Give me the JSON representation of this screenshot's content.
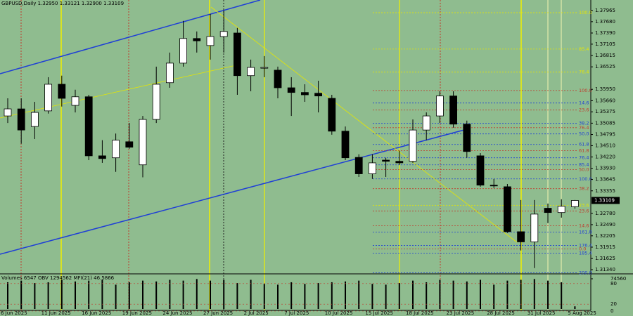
{
  "chart_data": {
    "type": "candlestick",
    "title": "GBPUSD,Daily  1.32950 1.33121 1.32900 1.33109",
    "categories": [
      "6 Jun 2025",
      null,
      null,
      "11 Jun 2025",
      null,
      null,
      "16 Jun 2025",
      null,
      null,
      "19 Jun 2025",
      null,
      null,
      "24 Jun 2025",
      null,
      null,
      "27 Jun 2025",
      null,
      null,
      "2 Jul 2025",
      null,
      null,
      "7 Jul 2025",
      null,
      null,
      "10 Jul 2025",
      null,
      null,
      "15 Jul 2025",
      null,
      null,
      "18 Jul 2025",
      null,
      null,
      "23 Jul 2025",
      null,
      null,
      "28 Jul 2025",
      null,
      null,
      "31 Jul 2025",
      null,
      null,
      "5 Aug 2025"
    ],
    "open": [
      1.3527,
      1.3545,
      1.35,
      1.354,
      1.3608,
      1.3554,
      1.3576,
      1.3425,
      1.342,
      1.3461,
      1.3402,
      1.3518,
      1.3612,
      1.3662,
      1.3725,
      1.3707,
      1.373,
      1.3739,
      1.363,
      1.3649,
      1.3644,
      1.3599,
      1.3587,
      1.3585,
      1.3572,
      1.3488,
      1.3421,
      1.3379,
      1.3414,
      1.3411,
      1.3411,
      1.3491,
      1.3527,
      1.3578,
      1.3506,
      1.3425,
      1.335,
      1.3346,
      1.3231,
      1.3205,
      1.3291,
      1.328,
      1.3295
    ],
    "high": [
      1.3572,
      1.3572,
      1.3563,
      1.3626,
      1.363,
      1.3594,
      1.3581,
      1.3465,
      1.3482,
      1.3509,
      1.3527,
      1.3653,
      1.3689,
      1.377,
      1.3743,
      1.3788,
      1.3797,
      1.3752,
      1.3671,
      1.368,
      1.3653,
      1.3626,
      1.3608,
      1.3617,
      1.3581,
      1.35,
      1.3429,
      1.3429,
      1.342,
      1.3438,
      1.3518,
      1.3536,
      1.359,
      1.359,
      1.3515,
      1.3432,
      1.3366,
      1.3353,
      1.3312,
      1.3312,
      1.3303,
      1.3314,
      1.33121
    ],
    "low": [
      1.3509,
      1.3456,
      1.3468,
      1.3533,
      1.3551,
      1.3536,
      1.3414,
      1.3407,
      1.3384,
      1.3443,
      1.337,
      1.3509,
      1.3599,
      1.3653,
      1.3689,
      1.3671,
      1.3689,
      1.3581,
      1.359,
      1.3626,
      1.3572,
      1.3527,
      1.3563,
      1.3536,
      1.3479,
      1.3414,
      1.3371,
      1.3366,
      1.3371,
      1.3402,
      1.3407,
      1.3465,
      1.3509,
      1.3497,
      1.342,
      1.3346,
      1.3343,
      1.3228,
      1.3183,
      1.3138,
      1.3253,
      1.3267,
      1.329
    ],
    "close": [
      1.3545,
      1.3491,
      1.3536,
      1.3608,
      1.3572,
      1.3576,
      1.3425,
      1.3418,
      1.3465,
      1.3447,
      1.3518,
      1.3608,
      1.3662,
      1.3725,
      1.3719,
      1.373,
      1.3743,
      1.363,
      1.3651,
      1.3651,
      1.3599,
      1.3587,
      1.3581,
      1.3578,
      1.3488,
      1.342,
      1.3379,
      1.3407,
      1.3411,
      1.3407,
      1.3491,
      1.3527,
      1.3578,
      1.3506,
      1.3436,
      1.335,
      1.3348,
      1.3231,
      1.3205,
      1.3276,
      1.328,
      1.3296,
      1.33109
    ],
    "ylim": [
      1.31232,
      1.38234
    ],
    "yticks": [
      1.37965,
      {
        "value": 1.3768,
        "label": "1.37680"
      },
      {
        "value": 1.3739,
        "label": "1.37390"
      },
      1.37105,
      1.36815,
      1.36525,
      {
        "value": 1.3595,
        "label": "1.35950"
      },
      {
        "value": 1.3566,
        "label": "1.35660"
      },
      1.35375,
      1.35085,
      1.34795,
      {
        "value": 1.3451,
        "label": "1.34510"
      },
      {
        "value": 1.3422,
        "label": "1.34220"
      },
      {
        "value": 1.3393,
        "label": "1.33930"
      },
      1.33645,
      1.33355,
      {
        "value": 1.3278,
        "label": "1.32780"
      },
      {
        "value": 1.3249,
        "label": "1.32490"
      },
      1.32205,
      1.31915,
      1.31625,
      {
        "value": 1.3134,
        "label": "1.31340"
      }
    ],
    "last_price": 1.33109,
    "levels": [
      {
        "label": "100.0",
        "value": 1.3791,
        "color": "#e6e600"
      },
      {
        "label": "85.4",
        "value": 1.3698,
        "color": "#e6e600"
      },
      {
        "label": "76.4",
        "value": 1.3639,
        "color": "#e6e600"
      },
      {
        "label": "100.0",
        "value": 1.3592,
        "color": "#c0392b"
      },
      {
        "label": "14.6",
        "value": 1.356,
        "color": "#1f3fd6"
      },
      {
        "label": "23.6",
        "value": 1.3542,
        "color": "#c0392b"
      },
      {
        "label": "38.2",
        "value": 1.3508,
        "color": "#1f3fd6"
      },
      {
        "label": "76.4",
        "value": 1.3497,
        "color": "#c0392b"
      },
      {
        "label": "50.0",
        "value": 1.3481,
        "color": "#1f3fd6"
      },
      {
        "label": "61.8",
        "value": 1.3454,
        "color": "#1f3fd6"
      },
      {
        "label": "61.8",
        "value": 1.3438,
        "color": "#c0392b"
      },
      {
        "label": "76.4",
        "value": 1.342,
        "color": "#1f3fd6"
      },
      {
        "label": "85.4",
        "value": 1.3402,
        "color": "#1f3fd6"
      },
      {
        "label": "50.0",
        "value": 1.339,
        "color": "#c0392b"
      },
      {
        "label": "100.0",
        "value": 1.3366,
        "color": "#1f3fd6"
      },
      {
        "label": "38.2",
        "value": 1.3341,
        "color": "#c0392b"
      },
      {
        "label": "23.6",
        "value": 1.3298,
        "color": "#e6e600"
      },
      {
        "label": "23.6",
        "value": 1.3284,
        "color": "#c0392b"
      },
      {
        "label": "14.6",
        "value": 1.3246,
        "color": "#c0392b"
      },
      {
        "label": "161.8",
        "value": 1.323,
        "color": "#1f3fd6"
      },
      {
        "label": "176.4",
        "value": 1.3196,
        "color": "#1f3fd6"
      },
      {
        "label": "0.0",
        "value": 1.3187,
        "color": "#c0392b"
      },
      {
        "label": "185.4",
        "value": 1.3176,
        "color": "#1f3fd6"
      },
      {
        "label": "200.0",
        "value": 1.3126,
        "color": "#1f3fd6"
      }
    ],
    "indicator_label": "Volumes 6547  OBV 1294562  MFI(21) 46.5866",
    "volume": [
      66000,
      70000,
      64000,
      66000,
      72000,
      68000,
      70000,
      72000,
      60000,
      66000,
      70000,
      68000,
      72000,
      70000,
      74000,
      70000,
      72000,
      64000,
      72000,
      62000,
      60000,
      66000,
      62000,
      64000,
      66000,
      68000,
      70000,
      62000,
      60000,
      64000,
      70000,
      66000,
      72000,
      70000,
      68000,
      72000,
      60000,
      70000,
      72000,
      74000,
      70000,
      66000,
      6547
    ],
    "vlim": [
      0,
      74560
    ],
    "vticks": [
      74560
    ],
    "mfi_lim": [
      0,
      100
    ],
    "mfi_ticks": [
      80,
      20,
      0
    ]
  }
}
